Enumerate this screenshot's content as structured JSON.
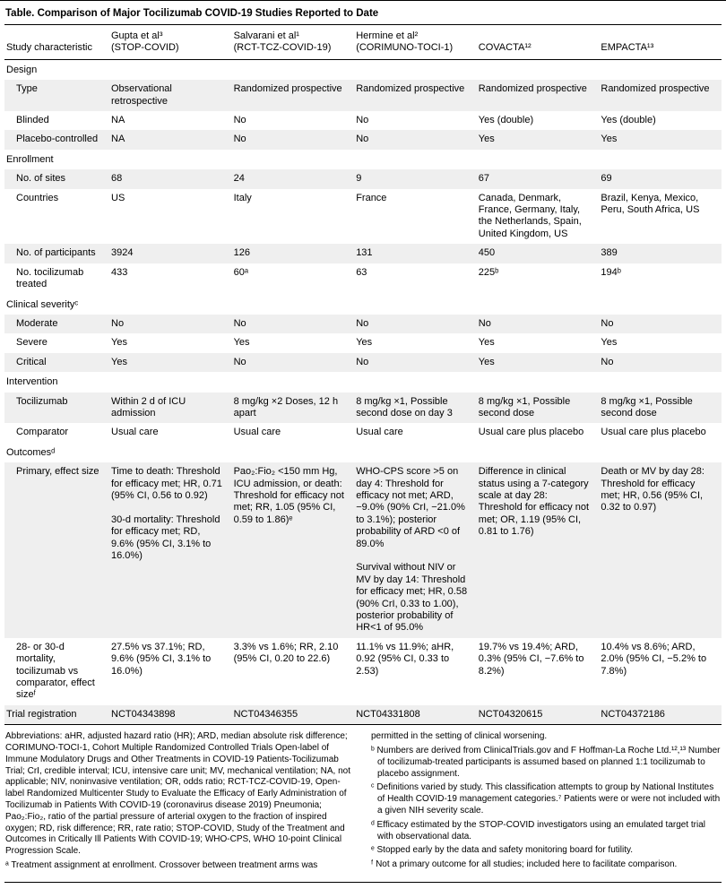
{
  "title": "Table. Comparison of Major Tocilizumab COVID-19 Studies Reported to Date",
  "columns": [
    "Study characteristic",
    "Gupta et al³\n(STOP-COVID)",
    "Salvarani et al¹\n(RCT-TCZ-COVID-19)",
    "Hermine et al²\n(CORIMUNO-TOCI-1)",
    "COVACTA¹²",
    "EMPACTA¹³"
  ],
  "rows": [
    {
      "label": "Design"
    },
    {
      "label": "Type",
      "values": [
        "Observational retrospective",
        "Randomized prospective",
        "Randomized prospective",
        "Randomized prospective",
        "Randomized prospective"
      ]
    },
    {
      "label": "Blinded",
      "values": [
        "NA",
        "No",
        "No",
        "Yes (double)",
        "Yes (double)"
      ]
    },
    {
      "label": "Placebo-controlled",
      "values": [
        "NA",
        "No",
        "No",
        "Yes",
        "Yes"
      ]
    },
    {
      "label": "Enrollment"
    },
    {
      "label": "No. of sites",
      "values": [
        "68",
        "24",
        "9",
        "67",
        "69"
      ]
    },
    {
      "label": "Countries",
      "values": [
        "US",
        "Italy",
        "France",
        "Canada, Denmark, France, Germany, Italy, the Netherlands, Spain, United Kingdom, US",
        "Brazil, Kenya, Mexico, Peru, South Africa, US"
      ]
    },
    {
      "label": "No. of participants",
      "values": [
        "3924",
        "126",
        "131",
        "450",
        "389"
      ]
    },
    {
      "label": "No. tocilizumab treated",
      "values": [
        "433",
        "60ᵃ",
        "63",
        "225ᵇ",
        "194ᵇ"
      ]
    },
    {
      "label": "Clinical severityᶜ"
    },
    {
      "label": "Moderate",
      "values": [
        "No",
        "No",
        "No",
        "No",
        "No"
      ]
    },
    {
      "label": "Severe",
      "values": [
        "Yes",
        "Yes",
        "Yes",
        "Yes",
        "Yes"
      ]
    },
    {
      "label": "Critical",
      "values": [
        "Yes",
        "No",
        "No",
        "Yes",
        "No"
      ]
    },
    {
      "label": "Intervention"
    },
    {
      "label": "Tocilizumab",
      "values": [
        "Within 2 d of ICU admission",
        "8 mg/kg ×2 Doses, 12 h apart",
        "8 mg/kg ×1, Possible second dose on day 3",
        "8 mg/kg ×1, Possible second dose",
        "8 mg/kg ×1, Possible second dose"
      ]
    },
    {
      "label": "Comparator",
      "values": [
        "Usual care",
        "Usual care",
        "Usual care",
        "Usual care plus placebo",
        "Usual care plus placebo"
      ]
    },
    {
      "label": "Outcomesᵈ"
    },
    {
      "label": "Primary, effect size",
      "values": [
        "Time to death: Threshold for efficacy met; HR, 0.71 (95% CI, 0.56 to 0.92)\n\n30-d mortality: Threshold for efficacy met; RD, 9.6% (95% CI, 3.1% to 16.0%)",
        "Pao₂:Fio₂ <150 mm Hg, ICU admission, or death: Threshold for efficacy not met; RR, 1.05 (95% CI, 0.59 to 1.86)ᵉ",
        "WHO-CPS score >5 on day 4: Threshold for efficacy not met; ARD, −9.0% (90% CrI, −21.0% to 3.1%); posterior probability of ARD <0 of 89.0%\n\nSurvival without NIV or MV by day 14: Threshold for efficacy met; HR, 0.58 (90% CrI, 0.33 to 1.00), posterior probability of HR<1 of 95.0%",
        "Difference in clinical status using a 7-category scale at day 28: Threshold for efficacy not met; OR, 1.19 (95% CI, 0.81 to 1.76)",
        "Death or MV by day 28: Threshold for efficacy met; HR, 0.56 (95% CI, 0.32 to 0.97)"
      ]
    },
    {
      "label": "28- or 30-d mortality, tocilizumab vs comparator, effect sizeᶠ",
      "values": [
        "27.5% vs 37.1%; RD, 9.6% (95% CI, 3.1% to 16.0%)",
        "3.3% vs 1.6%; RR, 2.10 (95% CI, 0.20 to 22.6)",
        "11.1% vs 11.9%; aHR, 0.92 (95% CI, 0.33 to 2.53)",
        "19.7% vs 19.4%; ARD, 0.3% (95% CI, −7.6% to 8.2%)",
        "10.4% vs 8.6%; ARD, 2.0% (95% CI, −5.2% to 7.8%)"
      ]
    },
    {
      "label": "Trial registration",
      "values": [
        "NCT04343898",
        "NCT04346355",
        "NCT04331808",
        "NCT04320615",
        "NCT04372186"
      ]
    }
  ],
  "footnotes": {
    "left": [
      "Abbreviations: aHR, adjusted hazard ratio (HR); ARD, median absolute risk difference; CORIMUNO-TOCI-1, Cohort Multiple Randomized Controlled Trials Open-label of Immune Modulatory Drugs and Other Treatments in COVID-19 Patients-Tocilizumab Trial; CrI, credible interval; ICU, intensive care unit; MV, mechanical ventilation; NA, not applicable; NIV, noninvasive ventilation; OR, odds ratio; RCT-TCZ-COVID-19, Open-label Randomized Multicenter Study to Evaluate the Efficacy of Early Administration of Tocilizumab in Patients With COVID-19 (coronavirus disease 2019) Pneumonia; Pao₂:Fio₂, ratio of the partial pressure of arterial oxygen to the fraction of inspired oxygen; RD, risk difference; RR, rate ratio; STOP-COVID, Study of the Treatment and Outcomes in Critically Ill Patients With COVID-19; WHO-CPS, WHO 10-point Clinical Progression Scale.",
      "ᵃ Treatment assignment at enrollment. Crossover between treatment arms was"
    ],
    "right": [
      "permitted in the setting of clinical worsening.",
      "ᵇ Numbers are derived from ClinicalTrials.gov and F Hoffman-La Roche Ltd.¹²,¹³ Number of tocilizumab-treated participants is assumed based on planned 1:1 tocilizumab to placebo assignment.",
      "ᶜ Definitions varied by study. This classification attempts to group by National Institutes of Health COVID-19 management categories.⁷ Patients were or were not included with a given NIH severity scale.",
      "ᵈ Efficacy estimated by the STOP-COVID investigators using an emulated target trial with observational data.",
      "ᵉ Stopped early by the data and safety monitoring board for futility.",
      "ᶠ Not a primary outcome for all studies; included here to facilitate comparison."
    ]
  }
}
